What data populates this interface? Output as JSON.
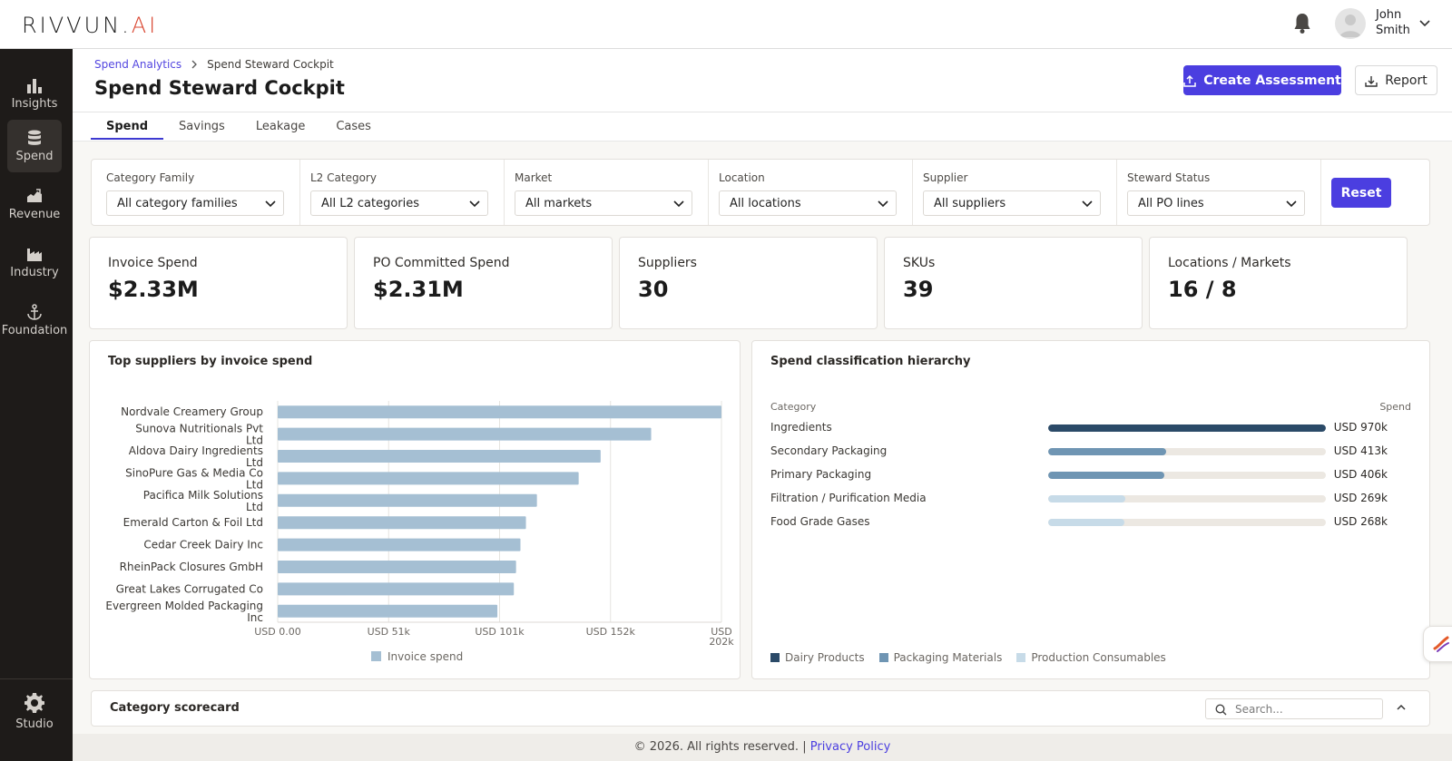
{
  "app": {
    "logo_main": "RIVVUN.",
    "logo_ai": "AI",
    "user_first": "John",
    "user_last": "Smith"
  },
  "sidebar": {
    "items": [
      {
        "label": "Insights",
        "icon": "bar-chart-icon",
        "active": false
      },
      {
        "label": "Spend",
        "icon": "database-icon",
        "active": true
      },
      {
        "label": "Revenue",
        "icon": "revenue-icon",
        "active": false
      },
      {
        "label": "Industry",
        "icon": "factory-icon",
        "active": false
      },
      {
        "label": "Foundation",
        "icon": "anchor-icon",
        "active": false
      },
      {
        "label": "Studio",
        "icon": "gear-icon",
        "active": false
      }
    ]
  },
  "breadcrumb": {
    "parent": "Spend Analytics",
    "current": "Spend Steward Cockpit"
  },
  "page": {
    "title": "Spend Steward Cockpit",
    "create_label": "Create Assessment",
    "report_label": "Report"
  },
  "tabs": [
    {
      "label": "Spend",
      "active": true
    },
    {
      "label": "Savings",
      "active": false
    },
    {
      "label": "Leakage",
      "active": false
    },
    {
      "label": "Cases",
      "active": false
    }
  ],
  "filters": [
    {
      "label": "Category Family",
      "value": "All category families"
    },
    {
      "label": "L2 Category",
      "value": "All L2 categories"
    },
    {
      "label": "Market",
      "value": "All markets"
    },
    {
      "label": "Location",
      "value": "All locations"
    },
    {
      "label": "Supplier",
      "value": "All suppliers"
    },
    {
      "label": "Steward Status",
      "value": "All PO lines"
    }
  ],
  "reset_label": "Reset",
  "kpis": [
    {
      "label": "Invoice Spend",
      "value": "$2.33M"
    },
    {
      "label": "PO Committed Spend",
      "value": "$2.31M"
    },
    {
      "label": "Suppliers",
      "value": "30"
    },
    {
      "label": "SKUs",
      "value": "39"
    },
    {
      "label": "Locations / Markets",
      "value": "16 / 8"
    }
  ],
  "suppliers_panel": {
    "title": "Top suppliers by invoice spend"
  },
  "chart_data": {
    "type": "bar",
    "orientation": "horizontal",
    "categories": [
      "Nordvale Creamery Group",
      "Sunova Nutritionals Pvt Ltd",
      "Aldova Dairy Ingredients Ltd",
      "SinoPure Gas & Media Co Ltd",
      "Pacifica Milk Solutions Ltd",
      "Emerald Carton & Foil Ltd",
      "Cedar Creek Dairy Inc",
      "RheinPack Closures GmbH",
      "Great Lakes Corrugated Co",
      "Evergreen Molded Packaging Inc"
    ],
    "series": [
      {
        "name": "Invoice spend",
        "values": [
          202000,
          170000,
          147000,
          137000,
          118000,
          113000,
          110500,
          108500,
          107500,
          100000
        ]
      }
    ],
    "xticks": [
      "USD 0.00",
      "USD 51k",
      "USD 101k",
      "USD 152k",
      "USD 202k"
    ],
    "xlim": [
      0,
      202000
    ],
    "grid": true,
    "legend_position": "bottom",
    "colors": {
      "bar": "#a5bfd3"
    }
  },
  "hierarchy_panel": {
    "title": "Spend classification hierarchy",
    "col_category": "Category",
    "col_spend": "Spend",
    "rows": [
      {
        "name": "Ingredients",
        "share": 1.0,
        "value": "USD 970k",
        "color": "#2b4a68"
      },
      {
        "name": "Secondary Packaging",
        "share": 0.426,
        "value": "USD 413k",
        "color": "#6f95b3"
      },
      {
        "name": "Primary Packaging",
        "share": 0.419,
        "value": "USD 406k",
        "color": "#6f95b3"
      },
      {
        "name": "Filtration / Purification Media",
        "share": 0.277,
        "value": "USD 269k",
        "color": "#c7dbe8"
      },
      {
        "name": "Food Grade Gases",
        "share": 0.276,
        "value": "USD 268k",
        "color": "#c7dbe8"
      }
    ],
    "legend": [
      {
        "name": "Dairy Products",
        "color": "#2b4a68"
      },
      {
        "name": "Packaging Materials",
        "color": "#6f95b3"
      },
      {
        "name": "Production Consumables",
        "color": "#c7dbe8"
      }
    ]
  },
  "scorecard": {
    "title": "Category scorecard",
    "search_placeholder": "Search..."
  },
  "footer": {
    "text": "© 2026. All rights reserved. |",
    "link": "Privacy Policy"
  }
}
